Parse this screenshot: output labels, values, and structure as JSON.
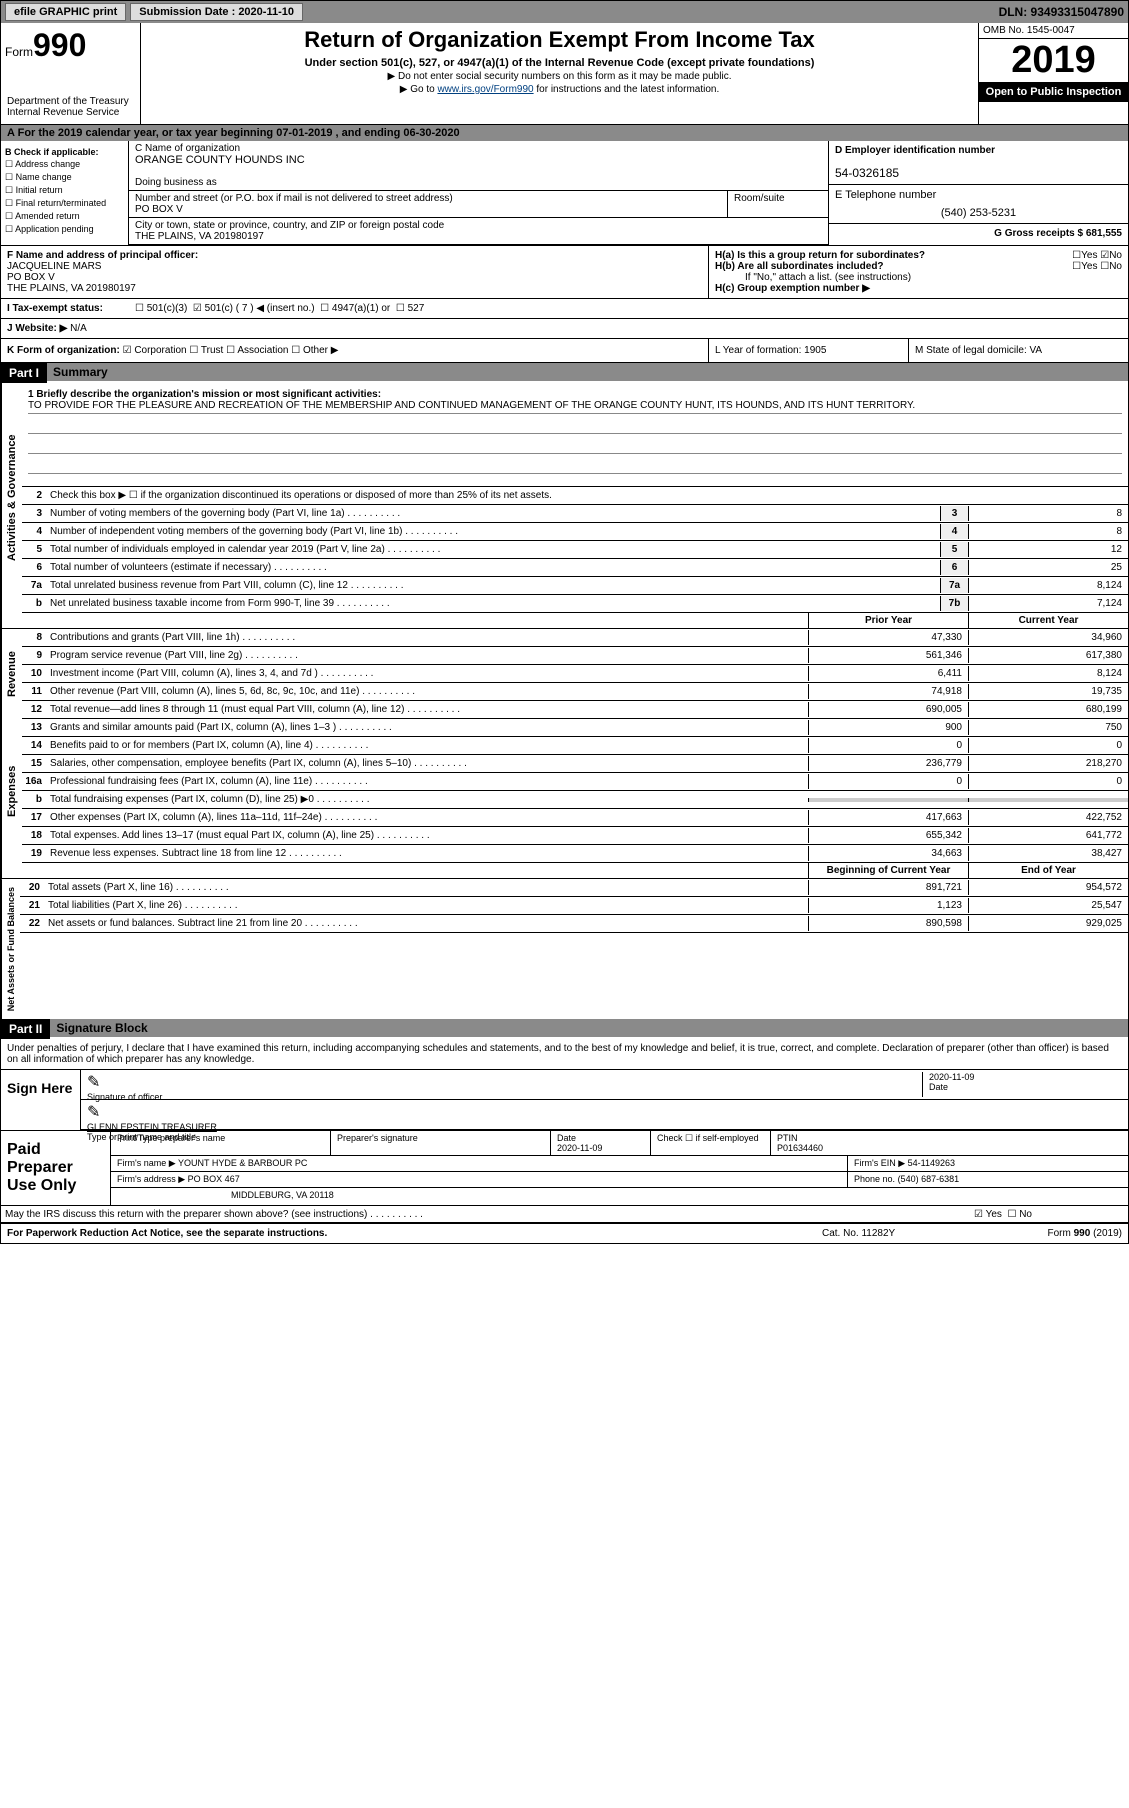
{
  "topbar": {
    "efile_label": "efile GRAPHIC print",
    "sub_date_label": "Submission Date : 2020-11-10",
    "dln": "DLN: 93493315047890"
  },
  "header": {
    "form_label": "Form",
    "form_num": "990",
    "dept": "Department of the Treasury\nInternal Revenue Service",
    "title": "Return of Organization Exempt From Income Tax",
    "subtitle": "Under section 501(c), 527, or 4947(a)(1) of the Internal Revenue Code (except private foundations)",
    "note1": "▶ Do not enter social security numbers on this form as it may be made public.",
    "note2_pre": "▶ Go to ",
    "note2_link": "www.irs.gov/Form990",
    "note2_post": " for instructions and the latest information.",
    "omb": "OMB No. 1545-0047",
    "year": "2019",
    "inspection": "Open to Public Inspection"
  },
  "period": "For the 2019 calendar year, or tax year beginning 07-01-2019   , and ending 06-30-2020",
  "section_b": {
    "check_label": "B Check if applicable:",
    "items": [
      "Address change",
      "Name change",
      "Initial return",
      "Final return/terminated",
      "Amended return",
      "Application pending"
    ]
  },
  "section_c": {
    "name_label": "C Name of organization",
    "name": "ORANGE COUNTY HOUNDS INC",
    "dba_label": "Doing business as",
    "dba": "",
    "street_label": "Number and street (or P.O. box if mail is not delivered to street address)",
    "room_label": "Room/suite",
    "street": "PO BOX V",
    "city_label": "City or town, state or province, country, and ZIP or foreign postal code",
    "city": "THE PLAINS, VA  201980197"
  },
  "section_d": {
    "ein_label": "D Employer identification number",
    "ein": "54-0326185"
  },
  "section_e": {
    "phone_label": "E Telephone number",
    "phone": "(540) 253-5231"
  },
  "section_g": {
    "label": "G Gross receipts $ 681,555"
  },
  "section_f": {
    "label": "F Name and address of principal officer:",
    "name": "JACQUELINE MARS",
    "street": "PO BOX V",
    "city": "THE PLAINS, VA  201980197"
  },
  "section_h": {
    "ha": "H(a)  Is this a group return for subordinates?",
    "hb": "H(b)  Are all subordinates included?",
    "hb_note": "If \"No,\" attach a list. (see instructions)",
    "hc": "H(c)  Group exemption number ▶",
    "yes": "Yes",
    "no": "No"
  },
  "section_i": {
    "label": "I  Tax-exempt status:",
    "opt1": "501(c)(3)",
    "opt2": "501(c) ( 7 ) ◀ (insert no.)",
    "opt3": "4947(a)(1) or",
    "opt4": "527"
  },
  "section_j": {
    "label": "J  Website: ▶",
    "val": "N/A"
  },
  "section_k": {
    "label": "K Form of organization:",
    "corp": "Corporation",
    "trust": "Trust",
    "assoc": "Association",
    "other": "Other ▶"
  },
  "section_l": {
    "label": "L Year of formation: 1905"
  },
  "section_m": {
    "label": "M State of legal domicile: VA"
  },
  "part1": {
    "header": "Part I",
    "title": "Summary"
  },
  "mission": {
    "label": "1  Briefly describe the organization's mission or most significant activities:",
    "text": "TO PROVIDE FOR THE PLEASURE AND RECREATION OF THE MEMBERSHIP AND CONTINUED MANAGEMENT OF THE ORANGE COUNTY HUNT, ITS HOUNDS, AND ITS HUNT TERRITORY."
  },
  "line2": "Check this box ▶ ☐ if the organization discontinued its operations or disposed of more than 25% of its net assets.",
  "governance_lines": [
    {
      "num": "3",
      "text": "Number of voting members of the governing body (Part VI, line 1a)",
      "box": "3",
      "val": "8"
    },
    {
      "num": "4",
      "text": "Number of independent voting members of the governing body (Part VI, line 1b)",
      "box": "4",
      "val": "8"
    },
    {
      "num": "5",
      "text": "Total number of individuals employed in calendar year 2019 (Part V, line 2a)",
      "box": "5",
      "val": "12"
    },
    {
      "num": "6",
      "text": "Total number of volunteers (estimate if necessary)",
      "box": "6",
      "val": "25"
    },
    {
      "num": "7a",
      "text": "Total unrelated business revenue from Part VIII, column (C), line 12",
      "box": "7a",
      "val": "8,124"
    },
    {
      "num": "b",
      "text": "Net unrelated business taxable income from Form 990-T, line 39",
      "box": "7b",
      "val": "7,124"
    }
  ],
  "col_headers": {
    "prior": "Prior Year",
    "current": "Current Year"
  },
  "revenue_lines": [
    {
      "num": "8",
      "text": "Contributions and grants (Part VIII, line 1h)",
      "prior": "47,330",
      "curr": "34,960"
    },
    {
      "num": "9",
      "text": "Program service revenue (Part VIII, line 2g)",
      "prior": "561,346",
      "curr": "617,380"
    },
    {
      "num": "10",
      "text": "Investment income (Part VIII, column (A), lines 3, 4, and 7d )",
      "prior": "6,411",
      "curr": "8,124"
    },
    {
      "num": "11",
      "text": "Other revenue (Part VIII, column (A), lines 5, 6d, 8c, 9c, 10c, and 11e)",
      "prior": "74,918",
      "curr": "19,735"
    },
    {
      "num": "12",
      "text": "Total revenue—add lines 8 through 11 (must equal Part VIII, column (A), line 12)",
      "prior": "690,005",
      "curr": "680,199"
    }
  ],
  "expense_lines": [
    {
      "num": "13",
      "text": "Grants and similar amounts paid (Part IX, column (A), lines 1–3 )",
      "prior": "900",
      "curr": "750"
    },
    {
      "num": "14",
      "text": "Benefits paid to or for members (Part IX, column (A), line 4)",
      "prior": "0",
      "curr": "0"
    },
    {
      "num": "15",
      "text": "Salaries, other compensation, employee benefits (Part IX, column (A), lines 5–10)",
      "prior": "236,779",
      "curr": "218,270"
    },
    {
      "num": "16a",
      "text": "Professional fundraising fees (Part IX, column (A), line 11e)",
      "prior": "0",
      "curr": "0"
    },
    {
      "num": "b",
      "text": "Total fundraising expenses (Part IX, column (D), line 25) ▶0",
      "prior": "",
      "curr": "",
      "shaded": true
    },
    {
      "num": "17",
      "text": "Other expenses (Part IX, column (A), lines 11a–11d, 11f–24e)",
      "prior": "417,663",
      "curr": "422,752"
    },
    {
      "num": "18",
      "text": "Total expenses. Add lines 13–17 (must equal Part IX, column (A), line 25)",
      "prior": "655,342",
      "curr": "641,772"
    },
    {
      "num": "19",
      "text": "Revenue less expenses. Subtract line 18 from line 12",
      "prior": "34,663",
      "curr": "38,427"
    }
  ],
  "net_headers": {
    "begin": "Beginning of Current Year",
    "end": "End of Year"
  },
  "net_lines": [
    {
      "num": "20",
      "text": "Total assets (Part X, line 16)",
      "prior": "891,721",
      "curr": "954,572"
    },
    {
      "num": "21",
      "text": "Total liabilities (Part X, line 26)",
      "prior": "1,123",
      "curr": "25,547"
    },
    {
      "num": "22",
      "text": "Net assets or fund balances. Subtract line 21 from line 20",
      "prior": "890,598",
      "curr": "929,025"
    }
  ],
  "part2": {
    "header": "Part II",
    "title": "Signature Block"
  },
  "decl": "Under penalties of perjury, I declare that I have examined this return, including accompanying schedules and statements, and to the best of my knowledge and belief, it is true, correct, and complete. Declaration of preparer (other than officer) is based on all information of which preparer has any knowledge.",
  "sign": {
    "here": "Sign Here",
    "sig_label": "Signature of officer",
    "date_label": "Date",
    "date": "2020-11-09",
    "name": "GLENN EPSTEIN  TREASURER",
    "name_label": "Type or print name and title"
  },
  "prep": {
    "label": "Paid Preparer Use Only",
    "name_label": "Print/Type preparer's name",
    "sig_label": "Preparer's signature",
    "date_label": "Date",
    "date": "2020-11-09",
    "check_label": "Check ☐ if self-employed",
    "ptin_label": "PTIN",
    "ptin": "P01634460",
    "firm_name_label": "Firm's name      ▶",
    "firm_name": "YOUNT HYDE & BARBOUR PC",
    "firm_ein_label": "Firm's EIN ▶",
    "firm_ein": "54-1149263",
    "firm_addr_label": "Firm's address ▶",
    "firm_addr1": "PO BOX 467",
    "firm_addr2": "MIDDLEBURG, VA  20118",
    "phone_label": "Phone no.",
    "phone": "(540) 687-6381"
  },
  "discuss": "May the IRS discuss this return with the preparer shown above? (see instructions)",
  "footer": {
    "left": "For Paperwork Reduction Act Notice, see the separate instructions.",
    "mid": "Cat. No. 11282Y",
    "right": "Form 990 (2019)"
  },
  "vert_labels": {
    "gov": "Activities & Governance",
    "rev": "Revenue",
    "exp": "Expenses",
    "net": "Net Assets or Fund Balances"
  }
}
